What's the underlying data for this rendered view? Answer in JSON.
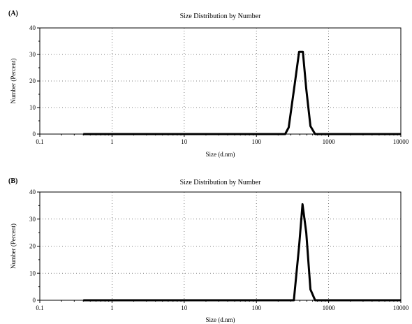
{
  "chart_data": [
    {
      "panel_label": "(A)",
      "type": "line",
      "title": "Size Distribution by Number",
      "xlabel": "Size (d.nm)",
      "ylabel": "Number (Percent)",
      "xscale": "log",
      "xlim": [
        0.1,
        10000
      ],
      "ylim": [
        0,
        40
      ],
      "xticks": [
        0.1,
        1,
        10,
        100,
        1000,
        10000
      ],
      "xtick_labels": [
        "0.1",
        "1",
        "10",
        "100",
        "1000",
        "10000"
      ],
      "yticks": [
        0,
        10,
        20,
        30,
        40
      ],
      "ytick_labels": [
        "0",
        "10",
        "20",
        "30",
        "40"
      ],
      "grid": true,
      "series": [
        {
          "points": [
            [
              0.4,
              0
            ],
            [
              250,
              0
            ],
            [
              280,
              2.5
            ],
            [
              340,
              19
            ],
            [
              390,
              31
            ],
            [
              440,
              31
            ],
            [
              490,
              17
            ],
            [
              560,
              3
            ],
            [
              650,
              0
            ],
            [
              10000,
              0
            ]
          ]
        }
      ]
    },
    {
      "panel_label": "(B)",
      "type": "line",
      "title": "Size Distribution by Number",
      "xlabel": "Size (d.nm)",
      "ylabel": "Number (Percent)",
      "xscale": "log",
      "xlim": [
        0.1,
        10000
      ],
      "ylim": [
        0,
        40
      ],
      "xticks": [
        0.1,
        1,
        10,
        100,
        1000,
        10000
      ],
      "xtick_labels": [
        "0.1",
        "1",
        "10",
        "100",
        "1000",
        "10000"
      ],
      "yticks": [
        0,
        10,
        20,
        30,
        40
      ],
      "ytick_labels": [
        "0",
        "10",
        "20",
        "30",
        "40"
      ],
      "grid": true,
      "series": [
        {
          "points": [
            [
              0.4,
              0
            ],
            [
              330,
              0
            ],
            [
              390,
              20
            ],
            [
              435,
              35.5
            ],
            [
              490,
              25
            ],
            [
              560,
              4
            ],
            [
              650,
              0
            ],
            [
              10000,
              0
            ]
          ]
        }
      ]
    }
  ]
}
